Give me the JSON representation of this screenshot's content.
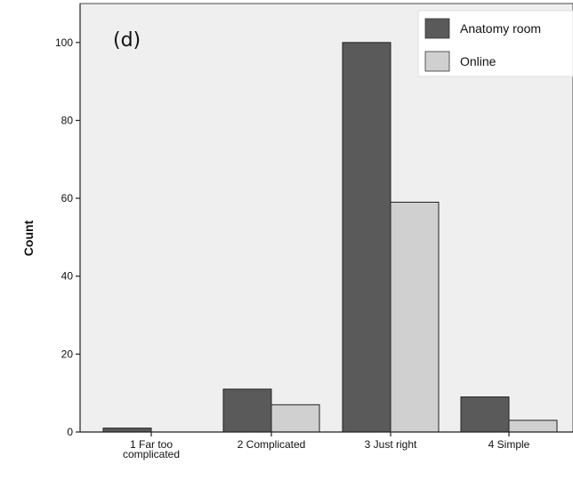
{
  "chart_data": {
    "type": "bar",
    "panel_label": "(d)",
    "ylabel": "Count",
    "xlabel": "",
    "ylim": [
      0,
      110
    ],
    "yticks": [
      "0",
      "20",
      "40",
      "60",
      "80",
      "100"
    ],
    "categories": [
      "1 Far too complicated",
      "2 Complicated",
      "3 Just right",
      "4 Simple"
    ],
    "category_lines": [
      [
        "1 Far too",
        "complicated"
      ],
      [
        "2 Complicated"
      ],
      [
        "3 Just right"
      ],
      [
        "4 Simple"
      ]
    ],
    "series": [
      {
        "name": "Anatomy room",
        "color": "#5a5a5a",
        "values": [
          1,
          11,
          100,
          9
        ]
      },
      {
        "name": "Online",
        "color": "#d0d0d0",
        "values": [
          0,
          7,
          59,
          3
        ]
      }
    ],
    "legend_position": "top-right",
    "plot_background": "#efefef",
    "grid": false
  }
}
